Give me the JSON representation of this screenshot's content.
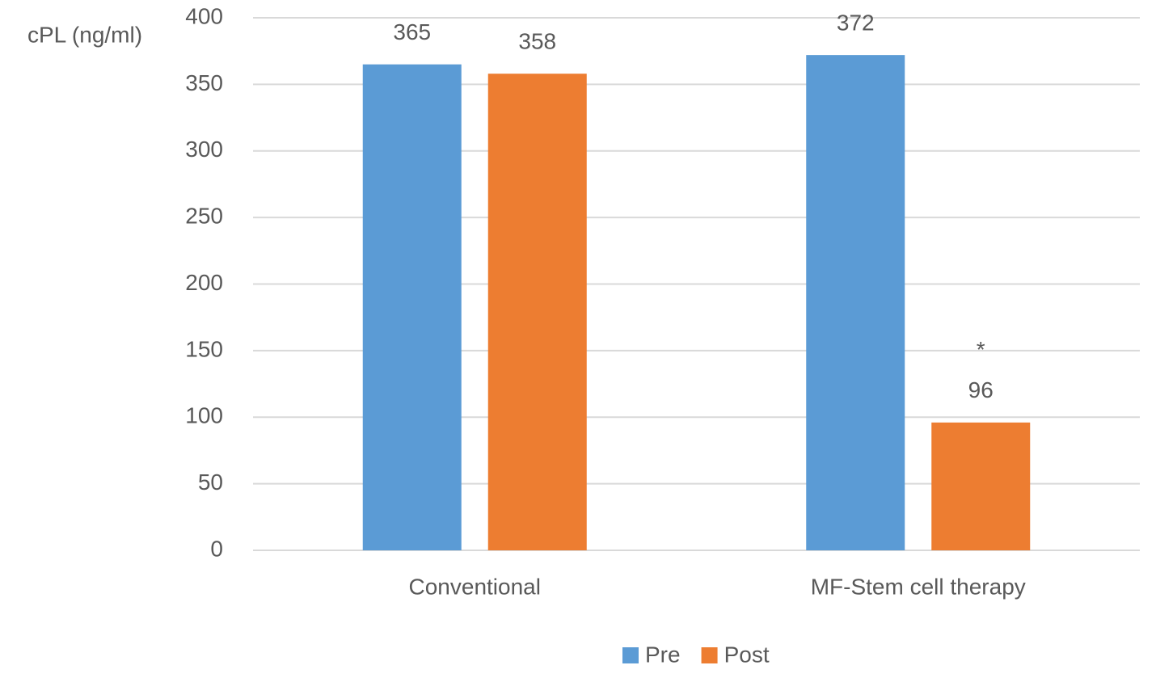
{
  "chart_data": {
    "type": "bar",
    "y_label": "cPL (ng/ml)",
    "categories": [
      "Conventional",
      "MF-Stem cell therapy"
    ],
    "series": [
      {
        "name": "Pre",
        "color": "#5b9bd5",
        "values": [
          365,
          372
        ]
      },
      {
        "name": "Post",
        "color": "#ed7d31",
        "values": [
          358,
          96
        ]
      }
    ],
    "annotations": [
      "*"
    ],
    "ylim": [
      0,
      400
    ],
    "yticks": [
      0,
      50,
      100,
      150,
      200,
      250,
      300,
      350,
      400
    ],
    "grid": true,
    "legend": "bottom"
  }
}
